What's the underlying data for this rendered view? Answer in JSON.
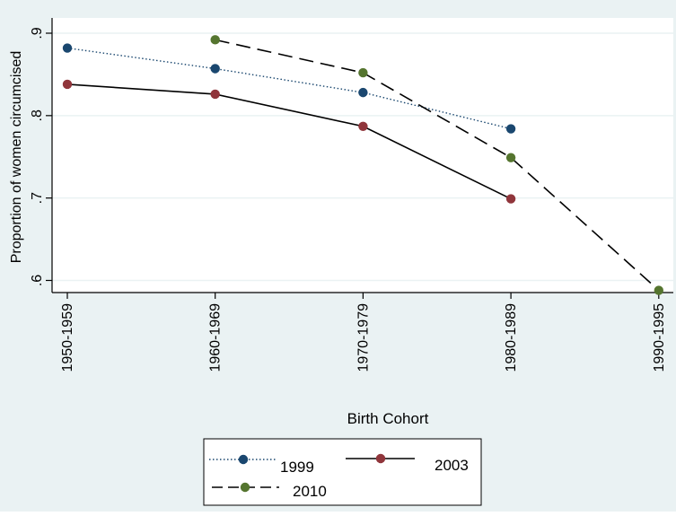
{
  "chart_data": {
    "type": "line",
    "title": "",
    "xlabel": "Birth Cohort",
    "ylabel": "Proportion of women circumcised",
    "categories": [
      "1950-1959",
      "1960-1969",
      "1970-1979",
      "1980-1989",
      "1990-1995"
    ],
    "ylim": [
      0.585,
      0.91
    ],
    "yticks": [
      {
        "value": 0.6,
        "label": ".6"
      },
      {
        "value": 0.7,
        "label": ".7"
      },
      {
        "value": 0.8,
        "label": ".8"
      },
      {
        "value": 0.9,
        "label": ".9"
      }
    ],
    "grid": true,
    "legend_position": "bottom",
    "series": [
      {
        "name": "1999",
        "style": "dotted",
        "marker_color": "#1a476f",
        "line_color": "#1a476f",
        "values": [
          0.882,
          0.857,
          0.828,
          0.784,
          null
        ]
      },
      {
        "name": "2003",
        "style": "solid",
        "marker_color": "#90353b",
        "line_color": "#000000",
        "values": [
          0.838,
          0.826,
          0.787,
          0.699,
          null
        ]
      },
      {
        "name": "2010",
        "style": "dashed",
        "marker_color": "#55752f",
        "line_color": "#000000",
        "values": [
          null,
          0.892,
          0.852,
          0.749,
          0.588
        ]
      }
    ],
    "colors": {
      "outer_background": "#eaf2f3",
      "plot_background": "#ffffff",
      "grid": "#eaf2f3"
    }
  }
}
